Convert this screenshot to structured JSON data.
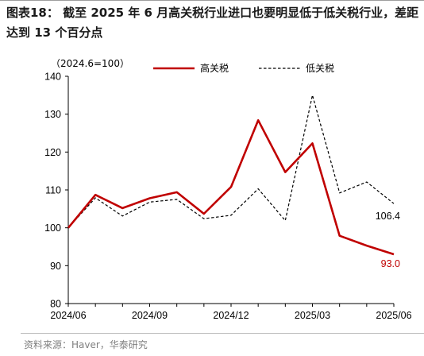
{
  "header": {
    "title": "图表18：  截至 2025 年 6 月高关税行业进口也要明显低于低关税行业，差距达到 13 个百分点"
  },
  "footer": {
    "source": "资料来源：Haver，华泰研究"
  },
  "chart_data": {
    "type": "line",
    "title": "",
    "note": "（2024.6=100）",
    "xlabel": "",
    "ylabel": "",
    "ylim": [
      80,
      140
    ],
    "yticks": [
      80,
      90,
      100,
      110,
      120,
      130,
      140
    ],
    "x": [
      "2024/06",
      "2024/07",
      "2024/08",
      "2024/09",
      "2024/10",
      "2024/11",
      "2024/12",
      "2025/01",
      "2025/02",
      "2025/03",
      "2025/04",
      "2025/05",
      "2025/06"
    ],
    "xtick_labels": [
      "2024/06",
      "2024/09",
      "2024/12",
      "2025/03",
      "2025/06"
    ],
    "grid": false,
    "legend": "top",
    "series": [
      {
        "name": "高关税",
        "color": "#C00000",
        "style": "solid",
        "values": [
          100,
          108.7,
          105.2,
          107.8,
          109.4,
          103.7,
          110.8,
          128.4,
          114.7,
          122.3,
          97.9,
          95.3,
          93.0
        ],
        "end_label": "93.0"
      },
      {
        "name": "低关税",
        "color": "#000000",
        "style": "dashed",
        "values": [
          100,
          107.9,
          103.1,
          106.8,
          107.5,
          102.4,
          103.3,
          110.3,
          101.9,
          135.0,
          109.2,
          112.1,
          106.4
        ],
        "end_label": "106.4"
      }
    ]
  }
}
